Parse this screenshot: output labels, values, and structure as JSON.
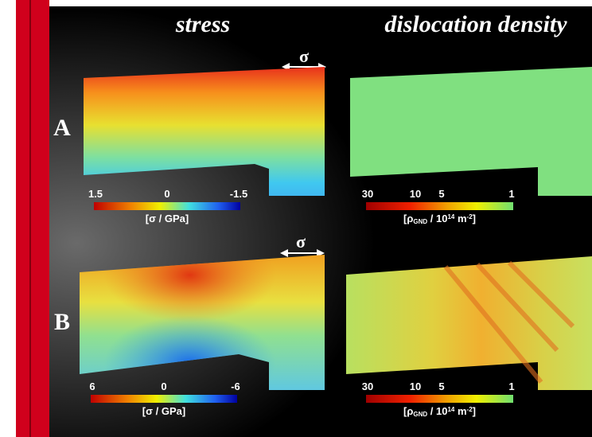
{
  "header": {
    "left": "stress",
    "right": "dislocation density"
  },
  "rows": [
    {
      "label": "A",
      "sigma": "σ",
      "stress_scale": {
        "ticks": [
          1.5,
          0,
          -1.5
        ],
        "label": "[σ / GPa]"
      },
      "density_scale": {
        "ticks": [
          30,
          10,
          5,
          1
        ],
        "label": [
          "[ρ",
          "GND",
          " / 10",
          "14",
          " m",
          "-2",
          "]"
        ]
      }
    },
    {
      "label": "B",
      "sigma": "σ",
      "stress_scale": {
        "ticks": [
          6,
          0,
          -6
        ],
        "label": "[σ / GPa]"
      },
      "density_scale": {
        "ticks": [
          30,
          10,
          5,
          1
        ],
        "label": [
          "[ρ",
          "GND",
          " / 10",
          "14",
          " m",
          "-2",
          "]"
        ]
      }
    }
  ]
}
